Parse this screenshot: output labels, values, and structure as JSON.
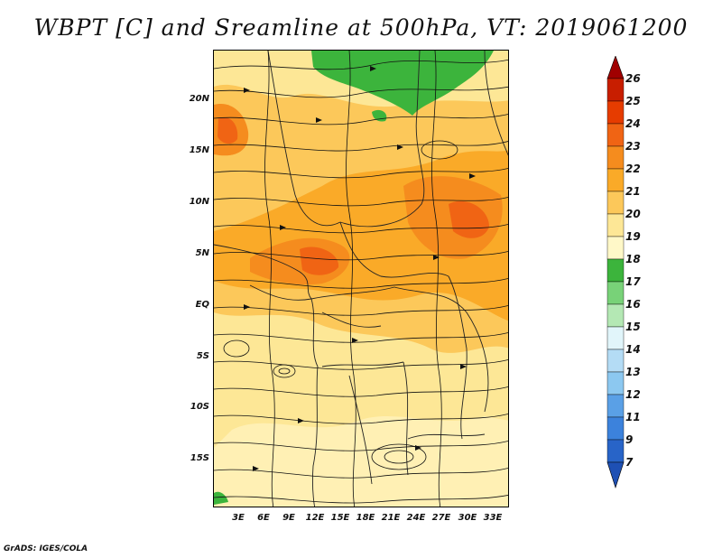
{
  "title": "WBPT [C] and Sreamline at 500hPa, VT: 2019061200",
  "footer": "GrADS: IGES/COLA",
  "lat_labels": [
    "20N",
    "15N",
    "10N",
    "5N",
    "EQ",
    "5S",
    "10S",
    "15S"
  ],
  "lon_labels": [
    "3E",
    "6E",
    "9E",
    "12E",
    "15E",
    "18E",
    "21E",
    "24E",
    "27E",
    "30E",
    "33E"
  ],
  "legend": {
    "levels": [
      "26",
      "25",
      "24",
      "23",
      "22",
      "21",
      "20",
      "19",
      "18",
      "17",
      "16",
      "15",
      "14",
      "13",
      "12",
      "11",
      "9",
      "7"
    ],
    "colors": [
      "#a00000",
      "#c81e00",
      "#e63c00",
      "#f06414",
      "#f58c1e",
      "#faaa28",
      "#fcc85a",
      "#fde796",
      "#fff8c8",
      "#3cb43c",
      "#78d278",
      "#b4e8b4",
      "#e1f5fa",
      "#b4dcf5",
      "#8cc8f0",
      "#5aa0e6",
      "#3c82dc",
      "#2864c8",
      "#1e50b4"
    ]
  },
  "map_layers": {
    "filled_field": "WBPT [C]",
    "vector_field": "Sreamline",
    "level": "500hPa"
  }
}
